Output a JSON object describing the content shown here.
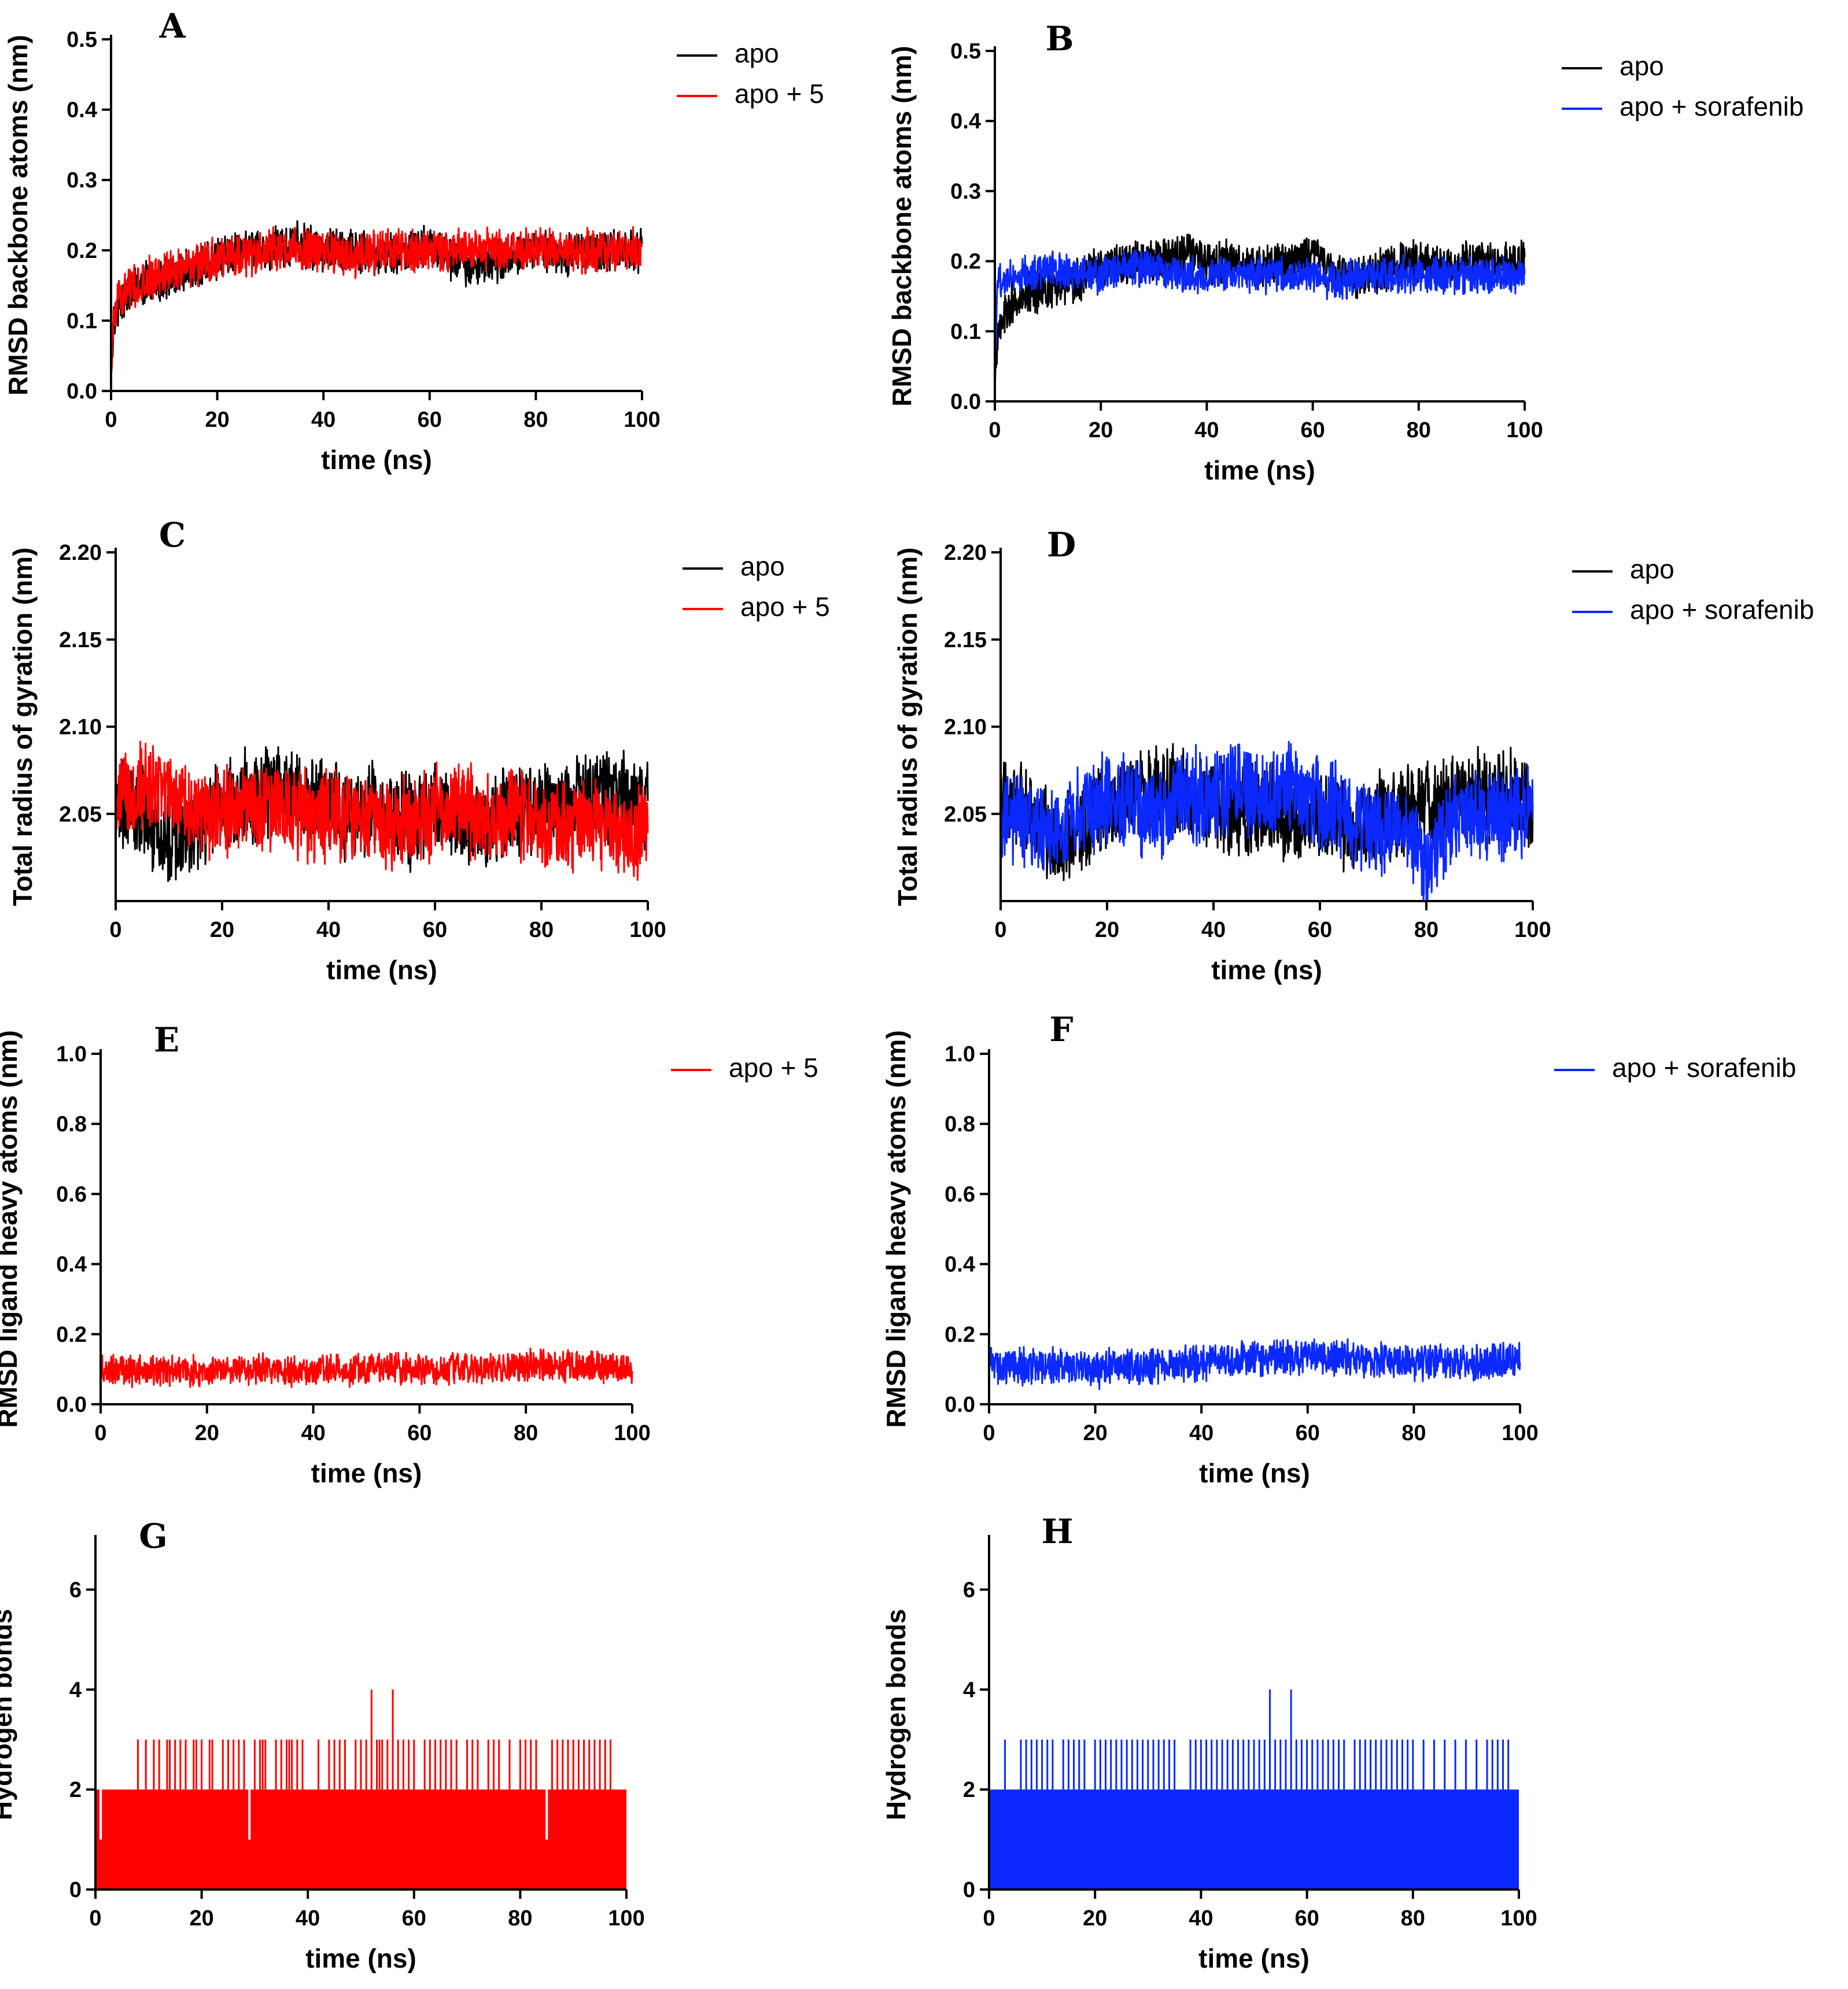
{
  "figure": {
    "title": ""
  },
  "colors": {
    "apo": "#000000",
    "apo_5": "#ff0000",
    "apo_sorafenib": "#0a28ff",
    "axis": "#000000"
  },
  "chart_data": [
    {
      "panel": "A",
      "type": "line",
      "xlabel": "time (ns)",
      "ylabel": "RMSD backbone atoms (nm)",
      "xlim": [
        0,
        100
      ],
      "ylim": [
        0,
        0.5
      ],
      "xticks": [
        0,
        20,
        40,
        60,
        80,
        100
      ],
      "xtick_labels": [
        "0",
        "20",
        "40",
        "60",
        "80",
        "100"
      ],
      "yticks": [
        0,
        0.1,
        0.2,
        0.3,
        0.4,
        0.5
      ],
      "ytick_labels": [
        "0.0",
        "0.1",
        "0.2",
        "0.3",
        "0.4",
        "0.5"
      ],
      "legend": [
        "apo",
        "apo + 5"
      ],
      "legend_position": "top-right",
      "series": [
        {
          "name": "apo",
          "color": "#000000",
          "x": [
            0,
            0.5,
            2,
            5,
            10,
            15,
            20,
            25,
            30,
            35,
            40,
            45,
            50,
            55,
            60,
            65,
            70,
            75,
            80,
            85,
            90,
            95,
            100
          ],
          "y": [
            0.02,
            0.1,
            0.13,
            0.15,
            0.16,
            0.17,
            0.19,
            0.2,
            0.2,
            0.21,
            0.2,
            0.2,
            0.19,
            0.2,
            0.21,
            0.18,
            0.18,
            0.19,
            0.2,
            0.19,
            0.2,
            0.2,
            0.2
          ],
          "noise": 0.035
        },
        {
          "name": "apo + 5",
          "color": "#ff0000",
          "x": [
            0,
            0.5,
            2,
            5,
            10,
            15,
            20,
            25,
            30,
            35,
            40,
            45,
            50,
            55,
            60,
            65,
            70,
            75,
            80,
            85,
            90,
            95,
            100
          ],
          "y": [
            0.03,
            0.11,
            0.14,
            0.15,
            0.17,
            0.18,
            0.19,
            0.19,
            0.2,
            0.2,
            0.2,
            0.19,
            0.2,
            0.2,
            0.2,
            0.2,
            0.2,
            0.2,
            0.2,
            0.2,
            0.2,
            0.2,
            0.2
          ],
          "noise": 0.035
        }
      ]
    },
    {
      "panel": "B",
      "type": "line",
      "xlabel": "time (ns)",
      "ylabel": "RMSD backbone atoms (nm)",
      "xlim": [
        0,
        100
      ],
      "ylim": [
        0,
        0.5
      ],
      "xticks": [
        0,
        20,
        40,
        60,
        80,
        100
      ],
      "xtick_labels": [
        "0",
        "20",
        "40",
        "60",
        "80",
        "100"
      ],
      "yticks": [
        0,
        0.1,
        0.2,
        0.3,
        0.4,
        0.5
      ],
      "ytick_labels": [
        "0.0",
        "0.1",
        "0.2",
        "0.3",
        "0.4",
        "0.5"
      ],
      "legend": [
        "apo",
        "apo + sorafenib"
      ],
      "legend_position": "top-right",
      "series": [
        {
          "name": "apo",
          "color": "#000000",
          "x": [
            0,
            0.5,
            2,
            5,
            10,
            15,
            20,
            25,
            30,
            35,
            40,
            45,
            50,
            55,
            60,
            65,
            70,
            75,
            80,
            85,
            90,
            95,
            100
          ],
          "y": [
            0.02,
            0.1,
            0.13,
            0.15,
            0.16,
            0.17,
            0.19,
            0.2,
            0.2,
            0.21,
            0.2,
            0.2,
            0.19,
            0.2,
            0.21,
            0.18,
            0.18,
            0.19,
            0.2,
            0.19,
            0.2,
            0.2,
            0.2
          ],
          "noise": 0.035
        },
        {
          "name": "apo + sorafenib",
          "color": "#0a28ff",
          "x": [
            0,
            0.5,
            2,
            5,
            10,
            15,
            20,
            25,
            30,
            35,
            40,
            45,
            50,
            55,
            60,
            65,
            70,
            75,
            80,
            85,
            90,
            95,
            100
          ],
          "y": [
            0.03,
            0.17,
            0.18,
            0.18,
            0.19,
            0.18,
            0.18,
            0.19,
            0.19,
            0.18,
            0.18,
            0.18,
            0.18,
            0.18,
            0.18,
            0.17,
            0.18,
            0.18,
            0.18,
            0.18,
            0.18,
            0.18,
            0.18
          ],
          "noise": 0.03
        }
      ]
    },
    {
      "panel": "C",
      "type": "line",
      "xlabel": "time (ns)",
      "ylabel": "Total radius of gyration (nm)",
      "xlim": [
        0,
        100
      ],
      "ylim": [
        2.0,
        2.2
      ],
      "xticks": [
        0,
        20,
        40,
        60,
        80,
        100
      ],
      "xtick_labels": [
        "0",
        "20",
        "40",
        "60",
        "80",
        "100"
      ],
      "yticks": [
        2.05,
        2.1,
        2.15,
        2.2
      ],
      "ytick_labels": [
        "2.05",
        "2.10",
        "2.15",
        "2.20"
      ],
      "legend": [
        "apo",
        "apo + 5"
      ],
      "legend_position": "top-right",
      "series": [
        {
          "name": "apo",
          "color": "#000000",
          "x": [
            0,
            5,
            10,
            15,
            20,
            25,
            30,
            35,
            40,
            45,
            50,
            55,
            60,
            65,
            70,
            75,
            80,
            85,
            90,
            95,
            100
          ],
          "y": [
            2.055,
            2.05,
            2.035,
            2.04,
            2.055,
            2.06,
            2.065,
            2.06,
            2.055,
            2.05,
            2.055,
            2.045,
            2.05,
            2.045,
            2.045,
            2.05,
            2.055,
            2.055,
            2.06,
            2.06,
            2.055
          ],
          "noise": 0.03
        },
        {
          "name": "apo + 5",
          "color": "#ff0000",
          "x": [
            0,
            5,
            10,
            15,
            20,
            25,
            30,
            35,
            40,
            45,
            50,
            55,
            60,
            65,
            70,
            75,
            80,
            85,
            90,
            95,
            100
          ],
          "y": [
            2.055,
            2.065,
            2.06,
            2.05,
            2.05,
            2.055,
            2.055,
            2.05,
            2.05,
            2.05,
            2.045,
            2.045,
            2.05,
            2.055,
            2.045,
            2.05,
            2.045,
            2.04,
            2.045,
            2.04,
            2.04
          ],
          "noise": 0.03
        }
      ]
    },
    {
      "panel": "D",
      "type": "line",
      "xlabel": "time (ns)",
      "ylabel": "Total radius of gyration (nm)",
      "xlim": [
        0,
        100
      ],
      "ylim": [
        2.0,
        2.2
      ],
      "xticks": [
        0,
        20,
        40,
        60,
        80,
        100
      ],
      "xtick_labels": [
        "0",
        "20",
        "40",
        "60",
        "80",
        "100"
      ],
      "yticks": [
        2.05,
        2.1,
        2.15,
        2.2
      ],
      "ytick_labels": [
        "2.05",
        "2.10",
        "2.15",
        "2.20"
      ],
      "legend": [
        "apo",
        "apo + sorafenib"
      ],
      "legend_position": "top-right",
      "series": [
        {
          "name": "apo",
          "color": "#000000",
          "x": [
            0,
            5,
            10,
            15,
            20,
            25,
            30,
            35,
            40,
            45,
            50,
            55,
            60,
            65,
            70,
            75,
            80,
            85,
            90,
            95,
            100
          ],
          "y": [
            2.055,
            2.05,
            2.035,
            2.04,
            2.055,
            2.06,
            2.065,
            2.06,
            2.055,
            2.05,
            2.055,
            2.045,
            2.05,
            2.045,
            2.045,
            2.05,
            2.055,
            2.055,
            2.06,
            2.06,
            2.055
          ],
          "noise": 0.03
        },
        {
          "name": "apo + sorafenib",
          "color": "#0a28ff",
          "x": [
            0,
            5,
            10,
            15,
            20,
            25,
            30,
            35,
            40,
            45,
            50,
            55,
            60,
            65,
            70,
            75,
            80,
            85,
            90,
            95,
            100
          ],
          "y": [
            2.05,
            2.045,
            2.04,
            2.05,
            2.06,
            2.055,
            2.05,
            2.06,
            2.06,
            2.065,
            2.055,
            2.065,
            2.055,
            2.05,
            2.04,
            2.04,
            2.02,
            2.045,
            2.05,
            2.05,
            2.05
          ],
          "noise": 0.03
        }
      ]
    },
    {
      "panel": "E",
      "type": "line",
      "xlabel": "time (ns)",
      "ylabel": "RMSD ligand heavy atoms (nm)",
      "xlim": [
        0,
        100
      ],
      "ylim": [
        0,
        1.0
      ],
      "xticks": [
        0,
        20,
        40,
        60,
        80,
        100
      ],
      "xtick_labels": [
        "0",
        "20",
        "40",
        "60",
        "80",
        "100"
      ],
      "yticks": [
        0,
        0.2,
        0.4,
        0.6,
        0.8,
        1.0
      ],
      "ytick_labels": [
        "0.0",
        "0.2",
        "0.4",
        "0.6",
        "0.8",
        "1.0"
      ],
      "legend": [
        "apo + 5"
      ],
      "legend_position": "top-right",
      "series": [
        {
          "name": "apo + 5",
          "color": "#ff0000",
          "x": [
            0,
            10,
            20,
            30,
            40,
            50,
            60,
            70,
            80,
            90,
            100
          ],
          "y": [
            0.1,
            0.095,
            0.095,
            0.1,
            0.095,
            0.1,
            0.1,
            0.1,
            0.11,
            0.11,
            0.1
          ],
          "noise": 0.05
        }
      ]
    },
    {
      "panel": "F",
      "type": "line",
      "xlabel": "time (ns)",
      "ylabel": "RMSD ligand heavy atoms (nm)",
      "xlim": [
        0,
        100
      ],
      "ylim": [
        0,
        1.0
      ],
      "xticks": [
        0,
        20,
        40,
        60,
        80,
        100
      ],
      "xtick_labels": [
        "0",
        "20",
        "40",
        "60",
        "80",
        "100"
      ],
      "yticks": [
        0,
        0.2,
        0.4,
        0.6,
        0.8,
        1.0
      ],
      "ytick_labels": [
        "0.0",
        "0.2",
        "0.4",
        "0.6",
        "0.8",
        "1.0"
      ],
      "legend": [
        "apo + sorafenib"
      ],
      "legend_position": "top-right",
      "series": [
        {
          "name": "apo + sorafenib",
          "color": "#0a28ff",
          "x": [
            0,
            10,
            20,
            30,
            40,
            50,
            60,
            70,
            80,
            90,
            100
          ],
          "y": [
            0.11,
            0.11,
            0.1,
            0.11,
            0.12,
            0.13,
            0.14,
            0.13,
            0.12,
            0.12,
            0.13
          ],
          "noise": 0.06
        }
      ]
    },
    {
      "panel": "G",
      "type": "bar",
      "xlabel": "time (ns)",
      "ylabel": "Hydrogen bonds",
      "xlim": [
        0,
        100
      ],
      "ylim": [
        0,
        7
      ],
      "xticks": [
        0,
        20,
        40,
        60,
        80,
        100
      ],
      "xtick_labels": [
        "0",
        "20",
        "40",
        "60",
        "80",
        "100"
      ],
      "yticks": [
        0,
        2,
        4,
        6
      ],
      "ytick_labels": [
        "0",
        "2",
        "4",
        "6"
      ],
      "legend": [],
      "legend_position": "none",
      "series": [
        {
          "name": "apo + 5",
          "color": "#ff0000",
          "baseline": 2,
          "spikes_3": [
            8,
            9.5,
            11,
            12,
            13.5,
            14,
            15,
            16,
            17,
            18.5,
            19,
            20,
            21.5,
            22,
            24,
            25,
            26,
            27,
            28,
            30,
            31,
            31.5,
            32,
            34,
            35,
            36,
            36.5,
            37,
            38,
            39,
            42,
            44,
            45,
            46,
            47,
            49,
            50,
            51,
            52,
            53,
            53.5,
            54,
            55,
            56,
            57,
            58,
            59,
            60,
            62,
            63,
            64,
            65,
            66,
            67,
            68,
            70,
            71,
            72,
            74,
            75,
            76,
            78,
            80,
            81,
            82,
            83,
            86,
            87,
            88,
            89,
            90,
            91,
            92,
            93,
            94,
            95,
            96,
            97
          ],
          "spikes_4": [
            52,
            56
          ],
          "dips_1": [
            1,
            29,
            85
          ]
        }
      ]
    },
    {
      "panel": "H",
      "type": "bar",
      "xlabel": "time (ns)",
      "ylabel": "Hydrogen bonds",
      "xlim": [
        0,
        100
      ],
      "ylim": [
        0,
        7
      ],
      "xticks": [
        0,
        20,
        40,
        60,
        80,
        100
      ],
      "xtick_labels": [
        "0",
        "20",
        "40",
        "60",
        "80",
        "100"
      ],
      "yticks": [
        0,
        2,
        4,
        6
      ],
      "ytick_labels": [
        "0",
        "2",
        "4",
        "6"
      ],
      "legend": [],
      "legend_position": "none",
      "series": [
        {
          "name": "apo + sorafenib",
          "color": "#0a28ff",
          "baseline": 2,
          "spikes_3": [
            3,
            6,
            7,
            8,
            9,
            10,
            11,
            12,
            14,
            15,
            16,
            17,
            18,
            20,
            21,
            22,
            23,
            24,
            25,
            26,
            27,
            28,
            29,
            30,
            31,
            32,
            33,
            34,
            35,
            38,
            39,
            40,
            41,
            42,
            43,
            44,
            45,
            46,
            47,
            48,
            49,
            50,
            51,
            52,
            53,
            54,
            55,
            56,
            57,
            58,
            59,
            60,
            61,
            62,
            63,
            64,
            65,
            66,
            67,
            69,
            70,
            71,
            72,
            73,
            74,
            75,
            76,
            77,
            78,
            79,
            80,
            82,
            84,
            86,
            88,
            90,
            92,
            94,
            95,
            96,
            97,
            98
          ],
          "spikes_4": [
            53,
            57
          ],
          "dips_1": []
        }
      ]
    }
  ]
}
